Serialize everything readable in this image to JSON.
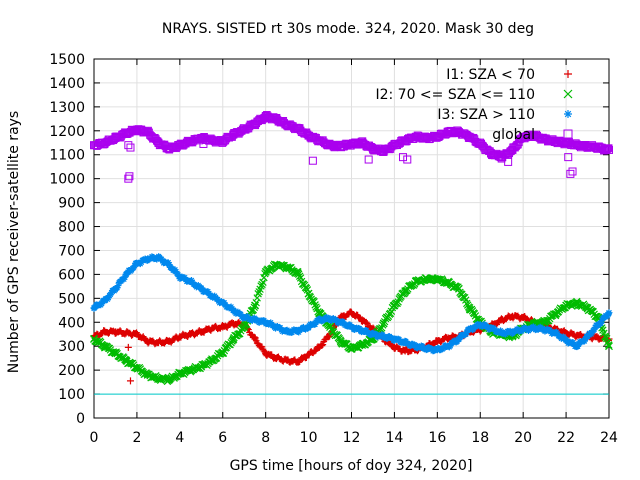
{
  "chart_data": {
    "type": "scatter",
    "title": "NRAYS. SISTED rt 30s mode. 324, 2020. Mask 30 deg",
    "xlabel": "GPS time [hours of doy 324, 2020]",
    "ylabel": "Number of GPS receiver-satellite rays",
    "xlim": [
      0,
      24
    ],
    "ylim": [
      0,
      1500
    ],
    "x_ticks": [
      "0",
      "2",
      "4",
      "6",
      "8",
      "10",
      "12",
      "14",
      "16",
      "18",
      "20",
      "22",
      "24"
    ],
    "y_ticks": [
      "0",
      "100",
      "200",
      "300",
      "400",
      "500",
      "600",
      "700",
      "800",
      "900",
      "1000",
      "1100",
      "1200",
      "1300",
      "1400",
      "1500"
    ],
    "reference_line": {
      "y": 100,
      "color": "#00cccc"
    },
    "legend_position": "top-right",
    "series": [
      {
        "name": "I1: SZA < 70",
        "color": "#dd0000",
        "marker": "+",
        "marker_text": "+",
        "x": [
          0,
          0.5,
          1,
          1.5,
          2,
          2.5,
          3,
          3.5,
          4,
          4.5,
          5,
          5.5,
          6,
          6.5,
          7,
          7.5,
          8,
          8.5,
          9,
          9.5,
          10,
          10.5,
          11,
          11.5,
          12,
          12.5,
          13,
          13.5,
          14,
          14.5,
          15,
          15.5,
          16,
          16.5,
          17,
          17.5,
          18,
          18.5,
          19,
          19.5,
          20,
          20.5,
          21,
          21.5,
          22,
          22.5,
          23,
          23.5,
          24
        ],
        "values": [
          340,
          360,
          360,
          355,
          350,
          320,
          315,
          320,
          340,
          350,
          360,
          375,
          380,
          395,
          390,
          330,
          270,
          250,
          240,
          235,
          265,
          295,
          350,
          420,
          440,
          410,
          370,
          330,
          295,
          280,
          285,
          300,
          320,
          335,
          340,
          360,
          370,
          385,
          410,
          425,
          420,
          400,
          385,
          370,
          355,
          345,
          340,
          335,
          330
        ],
        "outliers": [
          {
            "x": 1.6,
            "y": 295
          },
          {
            "x": 1.7,
            "y": 155
          }
        ]
      },
      {
        "name": "I2: 70 <= SZA <= 110",
        "color": "#00bb00",
        "marker": "x",
        "marker_text": "×",
        "x": [
          0,
          0.5,
          1,
          1.5,
          2,
          2.5,
          3,
          3.5,
          4,
          4.5,
          5,
          5.5,
          6,
          6.5,
          7,
          7.5,
          8,
          8.5,
          9,
          9.5,
          10,
          10.5,
          11,
          11.5,
          12,
          12.5,
          13,
          13.5,
          14,
          14.5,
          15,
          15.5,
          16,
          16.5,
          17,
          17.5,
          18,
          18.5,
          19,
          19.5,
          20,
          20.5,
          21,
          21.5,
          22,
          22.5,
          23,
          23.5,
          24
        ],
        "values": [
          330,
          300,
          270,
          240,
          210,
          180,
          165,
          160,
          185,
          200,
          215,
          240,
          275,
          330,
          380,
          470,
          610,
          640,
          630,
          605,
          520,
          440,
          380,
          320,
          290,
          305,
          330,
          395,
          470,
          530,
          570,
          580,
          580,
          565,
          540,
          460,
          400,
          360,
          350,
          340,
          375,
          395,
          400,
          435,
          470,
          480,
          460,
          420,
          300
        ]
      },
      {
        "name": "I3: SZA > 110",
        "color": "#0088ee",
        "marker": "*",
        "marker_text": "✱",
        "x": [
          0,
          0.5,
          1,
          1.5,
          2,
          2.5,
          3,
          3.5,
          4,
          4.5,
          5,
          5.5,
          6,
          6.5,
          7,
          7.5,
          8,
          8.5,
          9,
          9.5,
          10,
          10.5,
          11,
          11.5,
          12,
          12.5,
          13,
          13.5,
          14,
          14.5,
          15,
          15.5,
          16,
          16.5,
          17,
          17.5,
          18,
          18.5,
          19,
          19.5,
          20,
          20.5,
          21,
          21.5,
          22,
          22.5,
          23,
          23.5,
          24
        ],
        "values": [
          460,
          490,
          540,
          600,
          645,
          665,
          670,
          640,
          590,
          570,
          540,
          510,
          480,
          450,
          420,
          410,
          400,
          380,
          360,
          365,
          380,
          410,
          415,
          400,
          380,
          365,
          350,
          340,
          330,
          315,
          300,
          290,
          285,
          300,
          330,
          370,
          390,
          375,
          355,
          360,
          370,
          375,
          370,
          355,
          325,
          300,
          340,
          390,
          440
        ]
      },
      {
        "name": "global",
        "color": "#aa00ee",
        "marker": "square",
        "marker_text": "□",
        "x": [
          0,
          0.5,
          1,
          1.5,
          2,
          2.5,
          3,
          3.5,
          4,
          4.5,
          5,
          5.5,
          6,
          6.5,
          7,
          7.5,
          8,
          8.5,
          9,
          9.5,
          10,
          10.5,
          11,
          11.5,
          12,
          12.5,
          13,
          13.5,
          14,
          14.5,
          15,
          15.5,
          16,
          16.5,
          17,
          17.5,
          18,
          18.5,
          19,
          19.5,
          20,
          20.5,
          21,
          21.5,
          22,
          22.5,
          23,
          23.5,
          24
        ],
        "values": [
          1140,
          1150,
          1170,
          1190,
          1205,
          1195,
          1150,
          1125,
          1140,
          1155,
          1170,
          1160,
          1155,
          1185,
          1205,
          1230,
          1260,
          1250,
          1225,
          1210,
          1180,
          1160,
          1140,
          1135,
          1145,
          1150,
          1125,
          1115,
          1140,
          1160,
          1175,
          1170,
          1175,
          1195,
          1195,
          1175,
          1145,
          1105,
          1090,
          1120,
          1175,
          1180,
          1165,
          1155,
          1150,
          1140,
          1135,
          1130,
          1120
        ],
        "outliers": [
          {
            "x": 1.6,
            "y": 1000
          },
          {
            "x": 1.65,
            "y": 1010
          },
          {
            "x": 1.6,
            "y": 1140
          },
          {
            "x": 1.7,
            "y": 1130
          },
          {
            "x": 10.2,
            "y": 1075
          },
          {
            "x": 12.8,
            "y": 1080
          },
          {
            "x": 14.4,
            "y": 1090
          },
          {
            "x": 14.6,
            "y": 1080
          },
          {
            "x": 19.3,
            "y": 1070
          },
          {
            "x": 22.2,
            "y": 1020
          },
          {
            "x": 22.3,
            "y": 1030
          },
          {
            "x": 22.1,
            "y": 1090
          },
          {
            "x": 5.1,
            "y": 1145
          },
          {
            "x": 8.7,
            "y": 1235
          }
        ]
      }
    ]
  }
}
